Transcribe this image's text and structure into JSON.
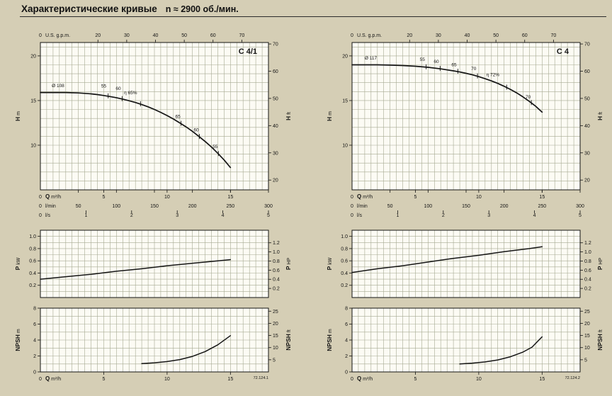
{
  "header": {
    "title": "Характеристические кривые",
    "speed": "n ≈ 2900 об./мин."
  },
  "colors": {
    "page_bg": "#d5ceb5",
    "plot_bg": "#fcfbf4",
    "grid": "#a6aa92",
    "ink": "#141414"
  },
  "chart_data": [
    {
      "name": "c41-head-capacity",
      "kind": "hq",
      "type": "line",
      "title": "C 4/1",
      "x_domain": [
        0,
        18
      ],
      "y_domain": [
        5,
        21.5
      ],
      "x_grid_step": 0.5,
      "y_grid_step": 1,
      "top_axis": {
        "zero": "0",
        "label": "U.S. g.p.m.",
        "ticks": [
          "20",
          "30",
          "40",
          "50",
          "60",
          "70"
        ],
        "factor": 0.2271
      },
      "left_axis": {
        "bold": "H",
        "unit": "m",
        "ticks": [
          "10",
          "15",
          "20"
        ]
      },
      "right_axis": {
        "bold": "H",
        "unit": "ft",
        "ticks": [
          "20",
          "30",
          "40",
          "50",
          "60",
          "70"
        ],
        "factor": 0.3048
      },
      "bottom_axes": [
        {
          "zero": "0",
          "bold": "Q",
          "label": "m³/h",
          "ticks": [
            "5",
            "10",
            "15"
          ],
          "factor": 1
        },
        {
          "zero": "0",
          "label": "l/min",
          "ticks": [
            "50",
            "100",
            "150",
            "200",
            "250",
            "300"
          ],
          "factor": 0.06
        },
        {
          "zero": "0",
          "label": "l/s",
          "ticks": [
            "1",
            "2",
            "3",
            "4",
            "5"
          ],
          "factor": 3.6
        }
      ],
      "curve": [
        [
          0,
          15.9
        ],
        [
          1,
          15.9
        ],
        [
          2,
          15.9
        ],
        [
          3,
          15.85
        ],
        [
          4,
          15.75
        ],
        [
          4.5,
          15.67
        ],
        [
          5,
          15.57
        ],
        [
          5.5,
          15.45
        ],
        [
          6,
          15.32
        ],
        [
          6.5,
          15.16
        ],
        [
          7,
          14.98
        ],
        [
          7.5,
          14.78
        ],
        [
          8,
          14.55
        ],
        [
          8.5,
          14.3
        ],
        [
          9,
          14.0
        ],
        [
          9.5,
          13.68
        ],
        [
          10,
          13.32
        ],
        [
          10.5,
          12.93
        ],
        [
          11,
          12.5
        ],
        [
          11.5,
          12.05
        ],
        [
          12,
          11.55
        ],
        [
          12.5,
          11.0
        ],
        [
          13,
          10.42
        ],
        [
          13.5,
          9.8
        ],
        [
          14,
          9.1
        ],
        [
          14.5,
          8.35
        ],
        [
          15,
          7.5
        ]
      ],
      "annotations": [
        {
          "text": "Ø 108",
          "x": 0.9,
          "y": 16.5,
          "anchor": "start"
        },
        {
          "text": "55",
          "x": 5.0,
          "y": 16.45,
          "tick_x": 5.35
        },
        {
          "text": "60",
          "x": 6.15,
          "y": 16.2,
          "tick_x": 6.45
        },
        {
          "text": "η 65%",
          "x": 6.6,
          "y": 15.7,
          "anchor": "start",
          "tick_x": 7.9
        },
        {
          "text": "65",
          "x": 10.85,
          "y": 13.05,
          "tick_x": 11.1
        },
        {
          "text": "60",
          "x": 12.3,
          "y": 11.55,
          "tick_x": 12.55
        },
        {
          "text": "55",
          "x": 13.8,
          "y": 9.7,
          "tick_x": 14.05
        }
      ]
    },
    {
      "name": "c41-power",
      "kind": "p",
      "type": "line",
      "x_domain": [
        0,
        18
      ],
      "y_domain": [
        0,
        1.1
      ],
      "x_grid_step": 0.5,
      "y_grid_step": 0.1,
      "left_axis": {
        "bold": "P",
        "unit": "kW",
        "ticks": [
          "0.2",
          "0.4",
          "0.6",
          "0.8",
          "1.0"
        ]
      },
      "right_axis": {
        "bold": "P",
        "unit": "HP",
        "ticks": [
          "0.2",
          "0.4",
          "0.6",
          "0.8",
          "1.0",
          "1.2"
        ],
        "factor": 0.7457
      },
      "curve": [
        [
          0,
          0.3
        ],
        [
          2,
          0.34
        ],
        [
          4,
          0.38
        ],
        [
          6,
          0.43
        ],
        [
          8,
          0.47
        ],
        [
          10,
          0.52
        ],
        [
          12,
          0.56
        ],
        [
          14,
          0.6
        ],
        [
          15,
          0.62
        ]
      ]
    },
    {
      "name": "c41-npsh",
      "kind": "npsh",
      "type": "line",
      "x_domain": [
        0,
        18
      ],
      "y_domain": [
        0,
        8
      ],
      "x_grid_step": 0.5,
      "y_grid_step": 1,
      "left_axis": {
        "bold": "NPSH",
        "unit": "m",
        "ticks": [
          "0",
          "2",
          "4",
          "6",
          "8"
        ]
      },
      "right_axis": {
        "bold": "NPSH",
        "unit": "ft",
        "ticks": [
          "5",
          "10",
          "15",
          "20",
          "25"
        ],
        "factor": 0.3048
      },
      "bottom_axes": [
        {
          "zero": "0",
          "bold": "Q",
          "label": "m³/h",
          "ticks": [
            "5",
            "10",
            "15"
          ],
          "factor": 1
        }
      ],
      "curve": [
        [
          8,
          1.05
        ],
        [
          9,
          1.15
        ],
        [
          10,
          1.3
        ],
        [
          11,
          1.55
        ],
        [
          12,
          1.95
        ],
        [
          13,
          2.55
        ],
        [
          14,
          3.4
        ],
        [
          15,
          4.55
        ]
      ],
      "code": "72.124.1"
    },
    {
      "name": "c4-head-capacity",
      "kind": "hq",
      "type": "line",
      "title": "C 4",
      "x_domain": [
        0,
        18
      ],
      "y_domain": [
        5,
        21.5
      ],
      "x_grid_step": 0.5,
      "y_grid_step": 1,
      "top_axis": {
        "zero": "0",
        "label": "U.S. g.p.m.",
        "ticks": [
          "20",
          "30",
          "40",
          "50",
          "60",
          "70"
        ],
        "factor": 0.2271
      },
      "left_axis": {
        "bold": "H",
        "unit": "m",
        "ticks": [
          "10",
          "15",
          "20"
        ]
      },
      "right_axis": {
        "bold": "H",
        "unit": "ft",
        "ticks": [
          "20",
          "30",
          "40",
          "50",
          "60",
          "70"
        ],
        "factor": 0.3048
      },
      "bottom_axes": [
        {
          "zero": "0",
          "bold": "Q",
          "label": "m³/h",
          "ticks": [
            "5",
            "10",
            "15"
          ],
          "factor": 1
        },
        {
          "zero": "0",
          "label": "l/min",
          "ticks": [
            "50",
            "100",
            "150",
            "200",
            "250",
            "300"
          ],
          "factor": 0.06
        },
        {
          "zero": "0",
          "label": "l/s",
          "ticks": [
            "1",
            "2",
            "3",
            "4",
            "5"
          ],
          "factor": 3.6
        }
      ],
      "curve": [
        [
          0,
          19.0
        ],
        [
          1,
          19.0
        ],
        [
          2,
          19.0
        ],
        [
          3,
          18.97
        ],
        [
          4,
          18.92
        ],
        [
          5,
          18.84
        ],
        [
          6,
          18.72
        ],
        [
          7,
          18.55
        ],
        [
          8,
          18.33
        ],
        [
          8.5,
          18.2
        ],
        [
          9,
          18.05
        ],
        [
          9.5,
          17.88
        ],
        [
          10,
          17.68
        ],
        [
          10.5,
          17.45
        ],
        [
          11,
          17.2
        ],
        [
          11.5,
          16.92
        ],
        [
          12,
          16.6
        ],
        [
          12.5,
          16.25
        ],
        [
          13,
          15.85
        ],
        [
          13.5,
          15.4
        ],
        [
          14,
          14.9
        ],
        [
          14.5,
          14.35
        ],
        [
          15,
          13.7
        ]
      ],
      "annotations": [
        {
          "text": "Ø 117",
          "x": 1.0,
          "y": 19.6,
          "anchor": "start"
        },
        {
          "text": "55",
          "x": 5.55,
          "y": 19.45,
          "tick_x": 5.85
        },
        {
          "text": "60",
          "x": 6.65,
          "y": 19.2,
          "tick_x": 6.95
        },
        {
          "text": "65",
          "x": 8.05,
          "y": 18.85,
          "tick_x": 8.35
        },
        {
          "text": "70",
          "x": 9.6,
          "y": 18.4,
          "tick_x": 9.9
        },
        {
          "text": "η 72%",
          "x": 10.6,
          "y": 17.75,
          "anchor": "start",
          "tick_x": 12.2
        },
        {
          "text": "70",
          "x": 13.9,
          "y": 15.25,
          "tick_x": 14.15
        }
      ]
    },
    {
      "name": "c4-power",
      "kind": "p",
      "type": "line",
      "x_domain": [
        0,
        18
      ],
      "y_domain": [
        0,
        1.1
      ],
      "x_grid_step": 0.5,
      "y_grid_step": 0.1,
      "left_axis": {
        "bold": "P",
        "unit": "kW",
        "ticks": [
          "0.2",
          "0.4",
          "0.6",
          "0.8",
          "1.0"
        ]
      },
      "right_axis": {
        "bold": "P",
        "unit": "HP",
        "ticks": [
          "0.2",
          "0.4",
          "0.6",
          "0.8",
          "1.0",
          "1.2"
        ],
        "factor": 0.7457
      },
      "curve": [
        [
          0,
          0.41
        ],
        [
          2,
          0.47
        ],
        [
          4,
          0.52
        ],
        [
          6,
          0.58
        ],
        [
          8,
          0.64
        ],
        [
          10,
          0.69
        ],
        [
          12,
          0.75
        ],
        [
          14,
          0.8
        ],
        [
          15,
          0.83
        ]
      ]
    },
    {
      "name": "c4-npsh",
      "kind": "npsh",
      "type": "line",
      "x_domain": [
        0,
        18
      ],
      "y_domain": [
        0,
        8
      ],
      "x_grid_step": 0.5,
      "y_grid_step": 1,
      "left_axis": {
        "bold": "NPSH",
        "unit": "m",
        "ticks": [
          "0",
          "2",
          "4",
          "6",
          "8"
        ]
      },
      "right_axis": {
        "bold": "NPSH",
        "unit": "ft",
        "ticks": [
          "5",
          "10",
          "15",
          "20",
          "25"
        ],
        "factor": 0.3048
      },
      "bottom_axes": [
        {
          "zero": "0",
          "bold": "Q",
          "label": "m³/h",
          "ticks": [
            "5",
            "10",
            "15"
          ],
          "factor": 1
        }
      ],
      "curve": [
        [
          8.5,
          1.0
        ],
        [
          9.5,
          1.1
        ],
        [
          10.5,
          1.25
        ],
        [
          11.5,
          1.5
        ],
        [
          12.5,
          1.9
        ],
        [
          13.5,
          2.5
        ],
        [
          14.2,
          3.1
        ],
        [
          15,
          4.4
        ]
      ],
      "code": "72.124.2"
    }
  ]
}
